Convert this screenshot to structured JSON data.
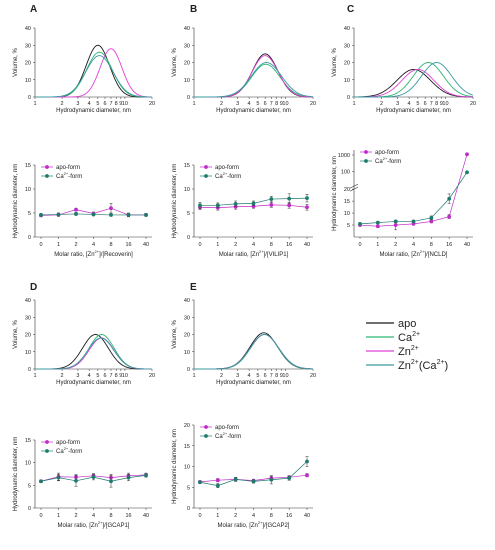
{
  "colors": {
    "apo": "#1a1a1a",
    "ca": "#2bb673",
    "zn": "#e040d8",
    "znca": "#3a9aa0",
    "apo_form": "#c02ac8",
    "ca_form": "#1f7a6e"
  },
  "legend": {
    "apo": "apo",
    "ca_base": "Ca",
    "ca_sup": "2+",
    "zn_base": "Zn",
    "zn_sup": "2+",
    "znca_base": "Zn",
    "znca_sup1": "2+",
    "znca_mid": "(Ca",
    "znca_sup2": "2+",
    "znca_end": ")"
  },
  "labels": {
    "volume": "Volume, %",
    "hydro_x": "Hydrodynamic diameter, nm",
    "hydro_y": "Hydrodynamic diameter, nm",
    "molar_prefix": "Molar ratio, [Zn",
    "molar_sup": "2+",
    "apo_form": "apo-form",
    "ca_form_base": "Ca",
    "ca_form_sup": "2+",
    "ca_form_end": "-form"
  },
  "chart_data": [
    {
      "panel": "A",
      "type": "line",
      "xscale": "log",
      "xlim": [
        1,
        20
      ],
      "ylim": [
        0,
        40
      ],
      "xticks": [
        "1",
        "2",
        "3",
        "4",
        "5",
        "6",
        "7",
        "8",
        "9",
        "10",
        "20"
      ],
      "yticks": [
        "0",
        "10",
        "20",
        "30",
        "40"
      ],
      "series": [
        {
          "name": "apo",
          "color_key": "apo",
          "center": 5.0,
          "width": 0.3,
          "peak": 30
        },
        {
          "name": "Ca2+",
          "color_key": "ca",
          "center": 5.2,
          "width": 0.33,
          "peak": 26
        },
        {
          "name": "Zn2+",
          "color_key": "zn",
          "center": 7.0,
          "width": 0.28,
          "peak": 28
        },
        {
          "name": "Zn2+(Ca2+)",
          "color_key": "znca",
          "center": 5.2,
          "width": 0.35,
          "peak": 24
        }
      ]
    },
    {
      "panel": "B",
      "type": "line",
      "xscale": "log",
      "xlim": [
        1,
        20
      ],
      "ylim": [
        0,
        40
      ],
      "xticks": [
        "1",
        "2",
        "3",
        "4",
        "5",
        "6",
        "7",
        "8",
        "9",
        "10",
        "20"
      ],
      "yticks": [
        "0",
        "10",
        "20",
        "30",
        "40"
      ],
      "series": [
        {
          "name": "apo",
          "color_key": "apo",
          "center": 6.0,
          "width": 0.32,
          "peak": 25
        },
        {
          "name": "Ca2+",
          "color_key": "ca",
          "center": 6.1,
          "width": 0.36,
          "peak": 19
        },
        {
          "name": "Zn2+",
          "color_key": "zn",
          "center": 6.0,
          "width": 0.33,
          "peak": 24
        },
        {
          "name": "Zn2+(Ca2+)",
          "color_key": "znca",
          "center": 6.2,
          "width": 0.38,
          "peak": 20
        }
      ]
    },
    {
      "panel": "C",
      "type": "line",
      "xscale": "log",
      "xlim": [
        1,
        20
      ],
      "ylim": [
        0,
        40
      ],
      "xticks": [
        "1",
        "2",
        "3",
        "4",
        "5",
        "6",
        "7",
        "8",
        "9",
        "10",
        "20"
      ],
      "yticks": [
        "0",
        "10",
        "20",
        "30",
        "40"
      ],
      "series": [
        {
          "name": "apo",
          "color_key": "apo",
          "center": 4.5,
          "width": 0.42,
          "peak": 16
        },
        {
          "name": "Ca2+",
          "color_key": "ca",
          "center": 6.5,
          "width": 0.38,
          "peak": 20
        },
        {
          "name": "Zn2+",
          "color_key": "zn",
          "center": 5.0,
          "width": 0.4,
          "peak": 16
        },
        {
          "name": "Zn2+(Ca2+)",
          "color_key": "znca",
          "center": 8.0,
          "width": 0.38,
          "peak": 20
        }
      ]
    },
    {
      "panel": "D",
      "type": "line",
      "xscale": "log",
      "xlim": [
        1,
        20
      ],
      "ylim": [
        0,
        40
      ],
      "xticks": [
        "1",
        "2",
        "3",
        "4",
        "5",
        "6",
        "7",
        "8",
        "9",
        "10",
        "20"
      ],
      "yticks": [
        "0",
        "10",
        "20",
        "30",
        "40"
      ],
      "series": [
        {
          "name": "apo",
          "color_key": "apo",
          "center": 4.7,
          "width": 0.33,
          "peak": 20
        },
        {
          "name": "Ca2+",
          "color_key": "ca",
          "center": 5.5,
          "width": 0.32,
          "peak": 20
        },
        {
          "name": "Zn2+",
          "color_key": "zn",
          "center": 5.5,
          "width": 0.32,
          "peak": 18
        },
        {
          "name": "Zn2+(Ca2+)",
          "color_key": "znca",
          "center": 5.4,
          "width": 0.33,
          "peak": 18
        }
      ]
    },
    {
      "panel": "E",
      "type": "line",
      "xscale": "log",
      "xlim": [
        1,
        20
      ],
      "ylim": [
        0,
        40
      ],
      "xticks": [
        "1",
        "2",
        "3",
        "4",
        "5",
        "6",
        "7",
        "8",
        "9",
        "10",
        "20"
      ],
      "yticks": [
        "0",
        "10",
        "20",
        "30",
        "40"
      ],
      "series": [
        {
          "name": "apo",
          "color_key": "apo",
          "center": 5.8,
          "width": 0.35,
          "peak": 21
        },
        {
          "name": "Ca2+",
          "color_key": "ca",
          "center": 5.9,
          "width": 0.35,
          "peak": 20
        },
        {
          "name": "Zn2+",
          "color_key": "zn",
          "center": 5.9,
          "width": 0.36,
          "peak": 20
        },
        {
          "name": "Zn2+(Ca2+)",
          "color_key": "znca",
          "center": 5.9,
          "width": 0.36,
          "peak": 20
        }
      ]
    },
    {
      "panel": "A-bottom",
      "type": "line",
      "protein": "Recoverin",
      "categories": [
        "0",
        "1",
        "2",
        "4",
        "8",
        "16",
        "40"
      ],
      "ylim": [
        0,
        15
      ],
      "yticks": [
        "0",
        "5",
        "10",
        "15"
      ],
      "series": [
        {
          "name": "apo-form",
          "color_key": "apo_form",
          "values": [
            4.5,
            4.6,
            5.7,
            4.9,
            6.0,
            4.6,
            4.6
          ],
          "errors": [
            0.3,
            0.3,
            0.3,
            0.3,
            1.0,
            0.4,
            0.3
          ]
        },
        {
          "name": "Ca2+-form",
          "color_key": "ca_form",
          "values": [
            4.6,
            4.7,
            4.8,
            4.7,
            4.6,
            4.6,
            4.6
          ],
          "errors": [
            0.3,
            0.3,
            0.3,
            0.3,
            0.3,
            0.3,
            0.3
          ]
        }
      ]
    },
    {
      "panel": "B-bottom",
      "type": "line",
      "protein": "VILIP1",
      "categories": [
        "0",
        "1",
        "2",
        "4",
        "8",
        "16",
        "40"
      ],
      "ylim": [
        0,
        15
      ],
      "yticks": [
        "0",
        "5",
        "10",
        "15"
      ],
      "series": [
        {
          "name": "apo-form",
          "color_key": "apo_form",
          "values": [
            6.2,
            6.1,
            6.3,
            6.4,
            6.7,
            6.6,
            6.2
          ],
          "errors": [
            0.5,
            0.5,
            0.5,
            0.4,
            0.5,
            0.6,
            0.6
          ]
        },
        {
          "name": "Ca2+-form",
          "color_key": "ca_form",
          "values": [
            6.6,
            6.6,
            6.9,
            7.0,
            7.9,
            8.0,
            8.1
          ],
          "errors": [
            0.6,
            0.5,
            0.6,
            0.5,
            0.6,
            1.0,
            0.8
          ]
        }
      ]
    },
    {
      "panel": "C-bottom",
      "type": "line",
      "protein": "NCLD",
      "axis_break": true,
      "categories": [
        "0",
        "1",
        "2",
        "4",
        "8",
        "16",
        "40"
      ],
      "yticks": [
        "5",
        "10",
        "15",
        "20",
        "100",
        "1000"
      ],
      "series": [
        {
          "name": "apo-form",
          "color_key": "apo_form",
          "values": [
            5.0,
            4.5,
            5.0,
            5.5,
            6.5,
            8.5,
            1100
          ],
          "errors": [
            0.5,
            0.5,
            2.0,
            0.5,
            0.5,
            0.8,
            0
          ]
        },
        {
          "name": "Ca2+-form",
          "color_key": "ca_form",
          "values": [
            5.5,
            6.0,
            6.5,
            6.5,
            8.0,
            16.0,
            90
          ],
          "errors": [
            0.5,
            0.5,
            0.5,
            0.5,
            0.8,
            2.0,
            8
          ]
        }
      ]
    },
    {
      "panel": "D-bottom",
      "type": "line",
      "protein": "GCAP1",
      "categories": [
        "0",
        "1",
        "2",
        "4",
        "8",
        "16",
        "40"
      ],
      "ylim": [
        0,
        15
      ],
      "yticks": [
        "0",
        "5",
        "10",
        "15"
      ],
      "series": [
        {
          "name": "apo-form",
          "color_key": "apo_form",
          "values": [
            5.9,
            6.9,
            6.8,
            7.1,
            6.7,
            7.1,
            7.3
          ],
          "errors": [
            0.3,
            0.8,
            0.6,
            0.5,
            0.7,
            0.6,
            0.4
          ]
        },
        {
          "name": "Ca2+-form",
          "color_key": "ca_form",
          "values": [
            5.9,
            6.7,
            6.0,
            6.8,
            5.9,
            6.7,
            7.2
          ],
          "errors": [
            0.3,
            0.7,
            1.2,
            0.6,
            1.3,
            0.7,
            0.4
          ]
        }
      ]
    },
    {
      "panel": "E-bottom",
      "type": "line",
      "protein": "GCAP2",
      "categories": [
        "0",
        "1",
        "2",
        "4",
        "8",
        "16",
        "40"
      ],
      "ylim": [
        0,
        20
      ],
      "yticks": [
        "0",
        "5",
        "10",
        "15",
        "20"
      ],
      "series": [
        {
          "name": "apo-form",
          "color_key": "apo_form",
          "values": [
            6.3,
            6.7,
            6.9,
            6.6,
            7.2,
            7.4,
            7.9
          ],
          "errors": [
            0.3,
            0.4,
            0.4,
            0.3,
            0.5,
            0.4,
            0.4
          ]
        },
        {
          "name": "Ca2+-form",
          "color_key": "ca_form",
          "values": [
            6.2,
            5.4,
            6.9,
            6.4,
            6.8,
            7.2,
            11.2
          ],
          "errors": [
            0.3,
            0.5,
            0.5,
            0.4,
            1.0,
            0.5,
            1.2
          ]
        }
      ]
    }
  ]
}
